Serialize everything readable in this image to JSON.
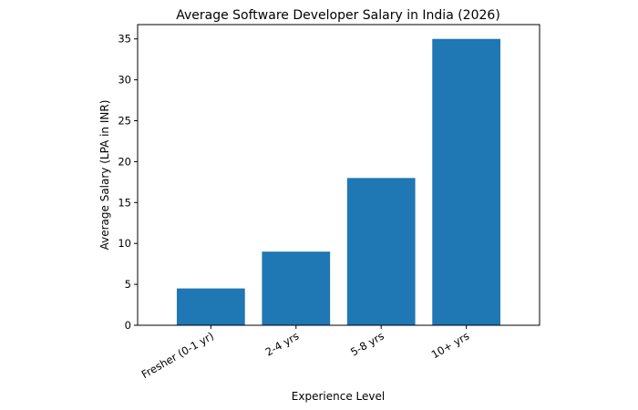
{
  "chart_data": {
    "type": "bar",
    "title": "Average Software Developer Salary in India (2026)",
    "xlabel": "Experience Level",
    "ylabel": "Average Salary (LPA in INR)",
    "categories": [
      "Fresher (0-1 yr)",
      "2-4 yrs",
      "5-8 yrs",
      "10+ yrs"
    ],
    "values": [
      4.5,
      9,
      18,
      35
    ],
    "ylim": [
      0,
      36.75
    ],
    "yticks": [
      0,
      5,
      10,
      15,
      20,
      25,
      30,
      35
    ],
    "grid": false,
    "legend": null,
    "bar_color": "#1f77b4",
    "xtick_rotation": -30
  }
}
